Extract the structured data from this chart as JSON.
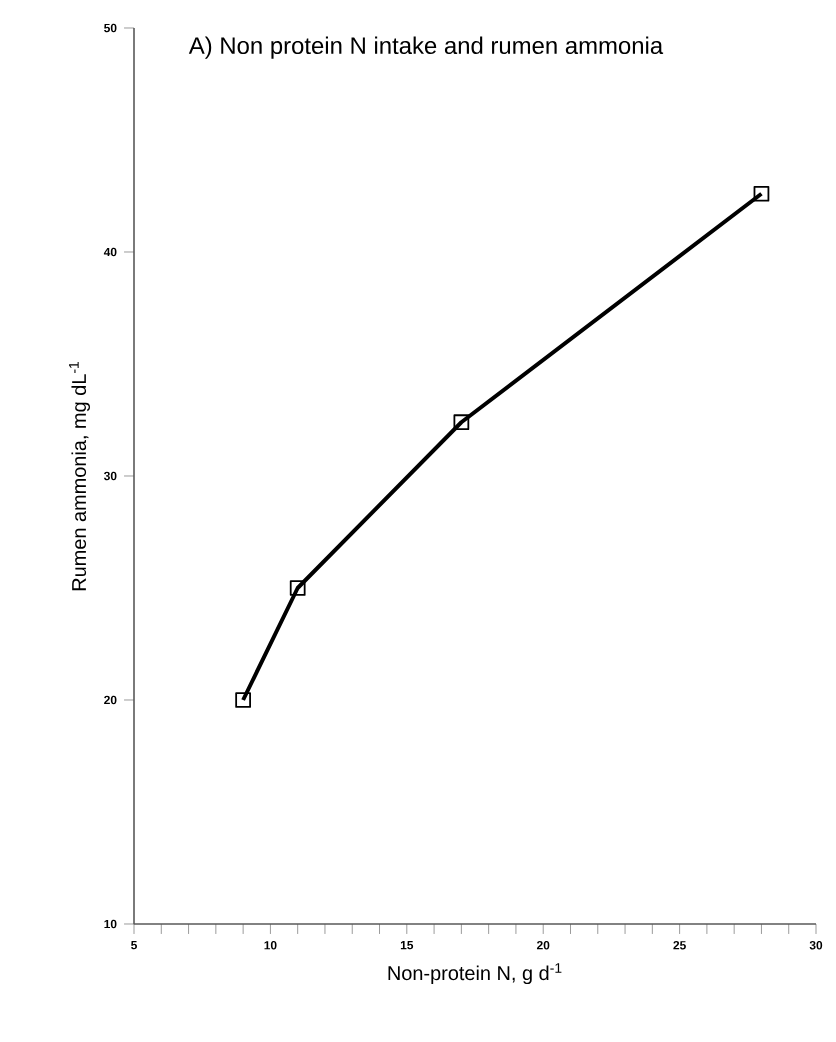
{
  "chart_data": {
    "type": "line",
    "title": "A) Non protein N intake and rumen ammonia",
    "xlabel": "Non-protein N, g d$^{-1}$",
    "ylabel": "Rumen ammonia, mg dL$^{-1}$",
    "x": [
      9,
      11,
      17,
      28
    ],
    "values": [
      20,
      25,
      32.4,
      42.6
    ],
    "color": "#000000",
    "xlim": [
      5,
      30
    ],
    "xticks": [
      5,
      10,
      15,
      20,
      25,
      30
    ],
    "ylim": [
      10,
      50
    ],
    "yticks": [
      10,
      20,
      30,
      40,
      50
    ],
    "marker": "square",
    "line_style": "solid"
  }
}
